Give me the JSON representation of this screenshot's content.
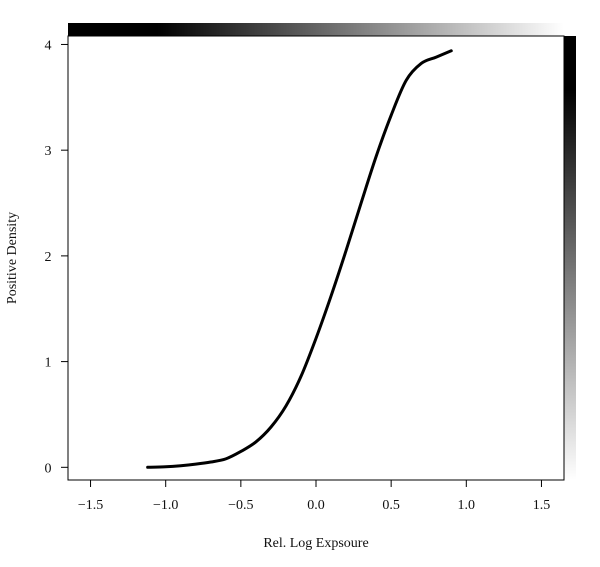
{
  "chart_data": {
    "type": "line",
    "title": "",
    "xlabel": "Rel. Log Expsoure",
    "ylabel": "Positive Density",
    "xlim": [
      -1.65,
      1.65
    ],
    "ylim": [
      -0.12,
      4.08
    ],
    "xticks": [
      -1.5,
      -1.0,
      -0.5,
      0.0,
      0.5,
      1.0,
      1.5
    ],
    "xtick_labels": [
      "−1.5",
      "−1.0",
      "−0.5",
      "0.0",
      "0.5",
      "1.0",
      "1.5"
    ],
    "yticks": [
      0,
      1,
      2,
      3,
      4
    ],
    "ytick_labels": [
      "0",
      "1",
      "2",
      "3",
      "4"
    ],
    "grid": false,
    "legend": "none",
    "series": [
      {
        "color": "#000000",
        "x": [
          -1.12,
          -1.0,
          -0.9,
          -0.8,
          -0.7,
          -0.6,
          -0.5,
          -0.4,
          -0.3,
          -0.2,
          -0.1,
          0.0,
          0.1,
          0.2,
          0.3,
          0.4,
          0.5,
          0.6,
          0.7,
          0.8,
          0.9
        ],
        "y": [
          0.0,
          0.005,
          0.015,
          0.03,
          0.05,
          0.08,
          0.15,
          0.24,
          0.38,
          0.58,
          0.86,
          1.22,
          1.62,
          2.05,
          2.5,
          2.94,
          3.33,
          3.66,
          3.82,
          3.88,
          3.94
        ]
      }
    ],
    "top_gradient": {
      "from": "#000000",
      "to": "#ffffff",
      "direction": "left-to-right"
    },
    "right_gradient": {
      "from": "#000000",
      "to": "#ffffff",
      "direction": "top-to-bottom"
    }
  }
}
